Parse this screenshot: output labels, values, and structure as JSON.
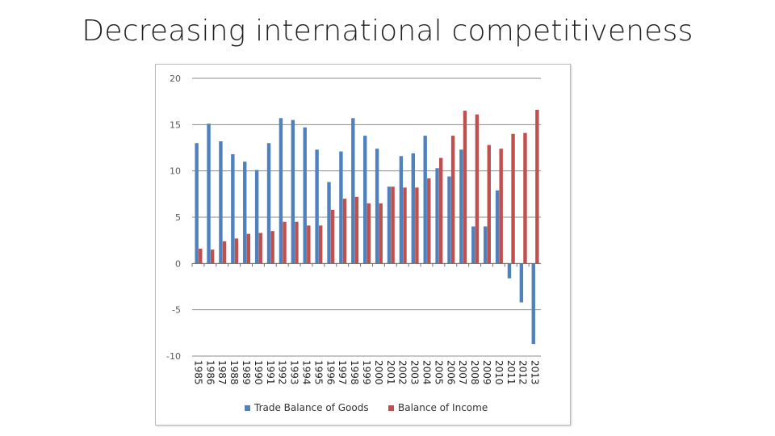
{
  "slide": {
    "title": "Decreasing international competitiveness"
  },
  "chart_data": {
    "type": "bar",
    "title": "",
    "xlabel": "",
    "ylabel": "",
    "ylim": [
      -10,
      20
    ],
    "yticks": [
      20,
      15,
      10,
      5,
      0,
      -5,
      -10
    ],
    "grid": true,
    "legend": "bottom",
    "categories": [
      "1985",
      "1986",
      "1987",
      "1988",
      "1989",
      "1990",
      "1991",
      "1992",
      "1993",
      "1994",
      "1995",
      "1996",
      "1997",
      "1998",
      "1999",
      "2000",
      "2001",
      "2002",
      "2003",
      "2004",
      "2005",
      "2006",
      "2007",
      "2008",
      "2009",
      "2010",
      "2011",
      "2012",
      "2013"
    ],
    "series": [
      {
        "name": "Trade Balance of Goods",
        "color": "#4f81bd",
        "values": [
          13.0,
          15.1,
          13.2,
          11.8,
          11.0,
          10.1,
          13.0,
          15.7,
          15.5,
          14.7,
          12.3,
          8.8,
          12.1,
          15.7,
          13.8,
          12.4,
          8.3,
          11.6,
          11.9,
          13.8,
          10.3,
          9.4,
          12.3,
          4.0,
          4.0,
          7.9,
          -1.6,
          -4.2,
          -8.7
        ]
      },
      {
        "name": "Balance of Income",
        "color": "#c0504d",
        "values": [
          1.6,
          1.5,
          2.4,
          2.7,
          3.2,
          3.3,
          3.5,
          4.5,
          4.5,
          4.1,
          4.1,
          5.8,
          7.0,
          7.2,
          6.5,
          6.5,
          8.3,
          8.2,
          8.2,
          9.2,
          11.4,
          13.8,
          16.5,
          16.1,
          12.8,
          12.4,
          14.0,
          14.1,
          16.6
        ]
      }
    ]
  }
}
